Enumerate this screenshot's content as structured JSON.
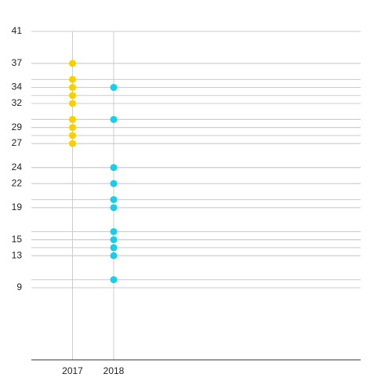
{
  "chart_data": {
    "type": "strip",
    "categories": [
      "2017",
      "2018"
    ],
    "series": [
      {
        "color": "#f9cf00",
        "values": [
          37,
          35,
          34,
          33,
          32,
          30,
          29,
          28,
          27
        ]
      },
      {
        "color": "#1ccde8",
        "values": [
          34,
          30,
          24,
          22,
          20,
          19,
          16,
          15,
          14,
          13,
          10
        ]
      }
    ],
    "ylim": [
      0,
      41
    ],
    "yticks": [
      9,
      13,
      15,
      19,
      22,
      24,
      27,
      29,
      32,
      34,
      37,
      41
    ],
    "grid": true
  }
}
